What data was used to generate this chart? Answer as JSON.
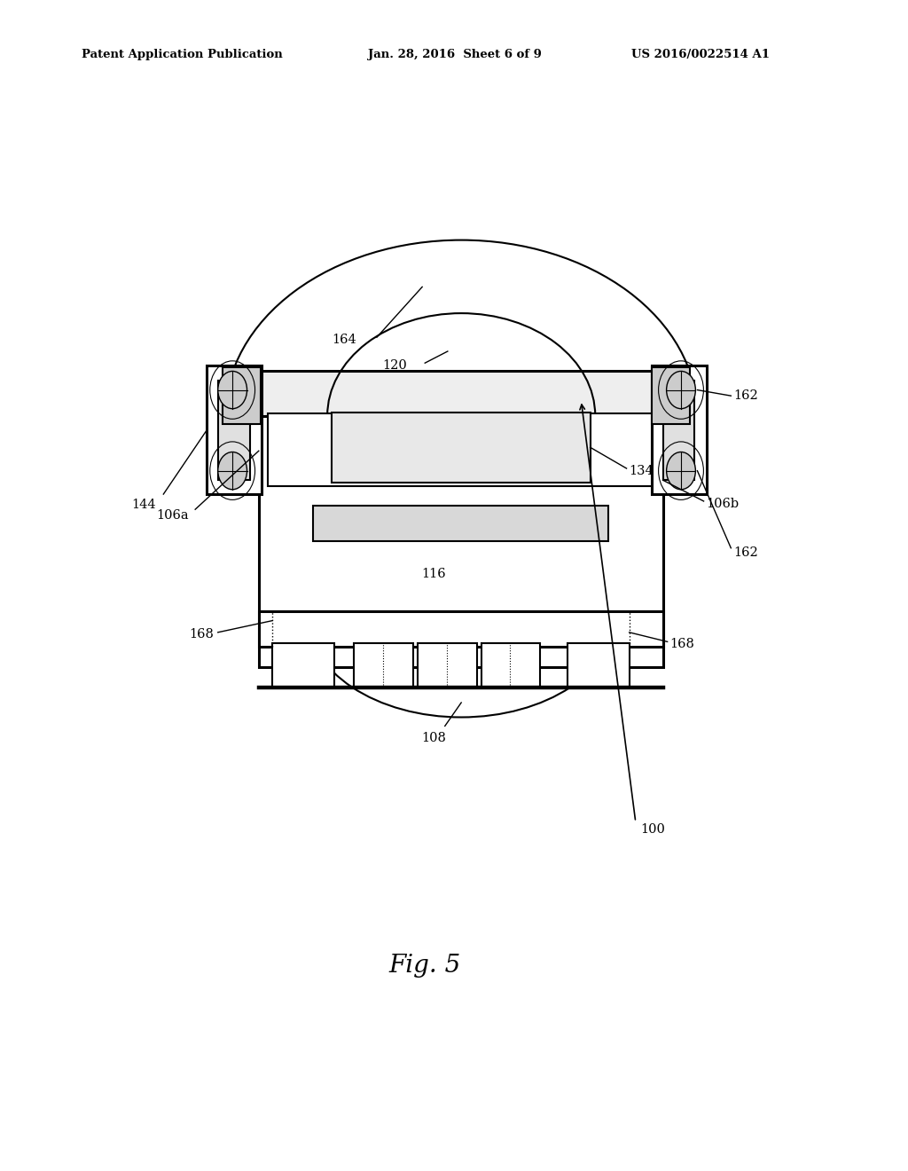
{
  "background_color": "#ffffff",
  "line_color": "#000000",
  "header_left": "Patent Application Publication",
  "header_mid": "Jan. 28, 2016  Sheet 6 of 9",
  "header_right": "US 2016/0022514 A1",
  "fig_label": "Fig. 5"
}
